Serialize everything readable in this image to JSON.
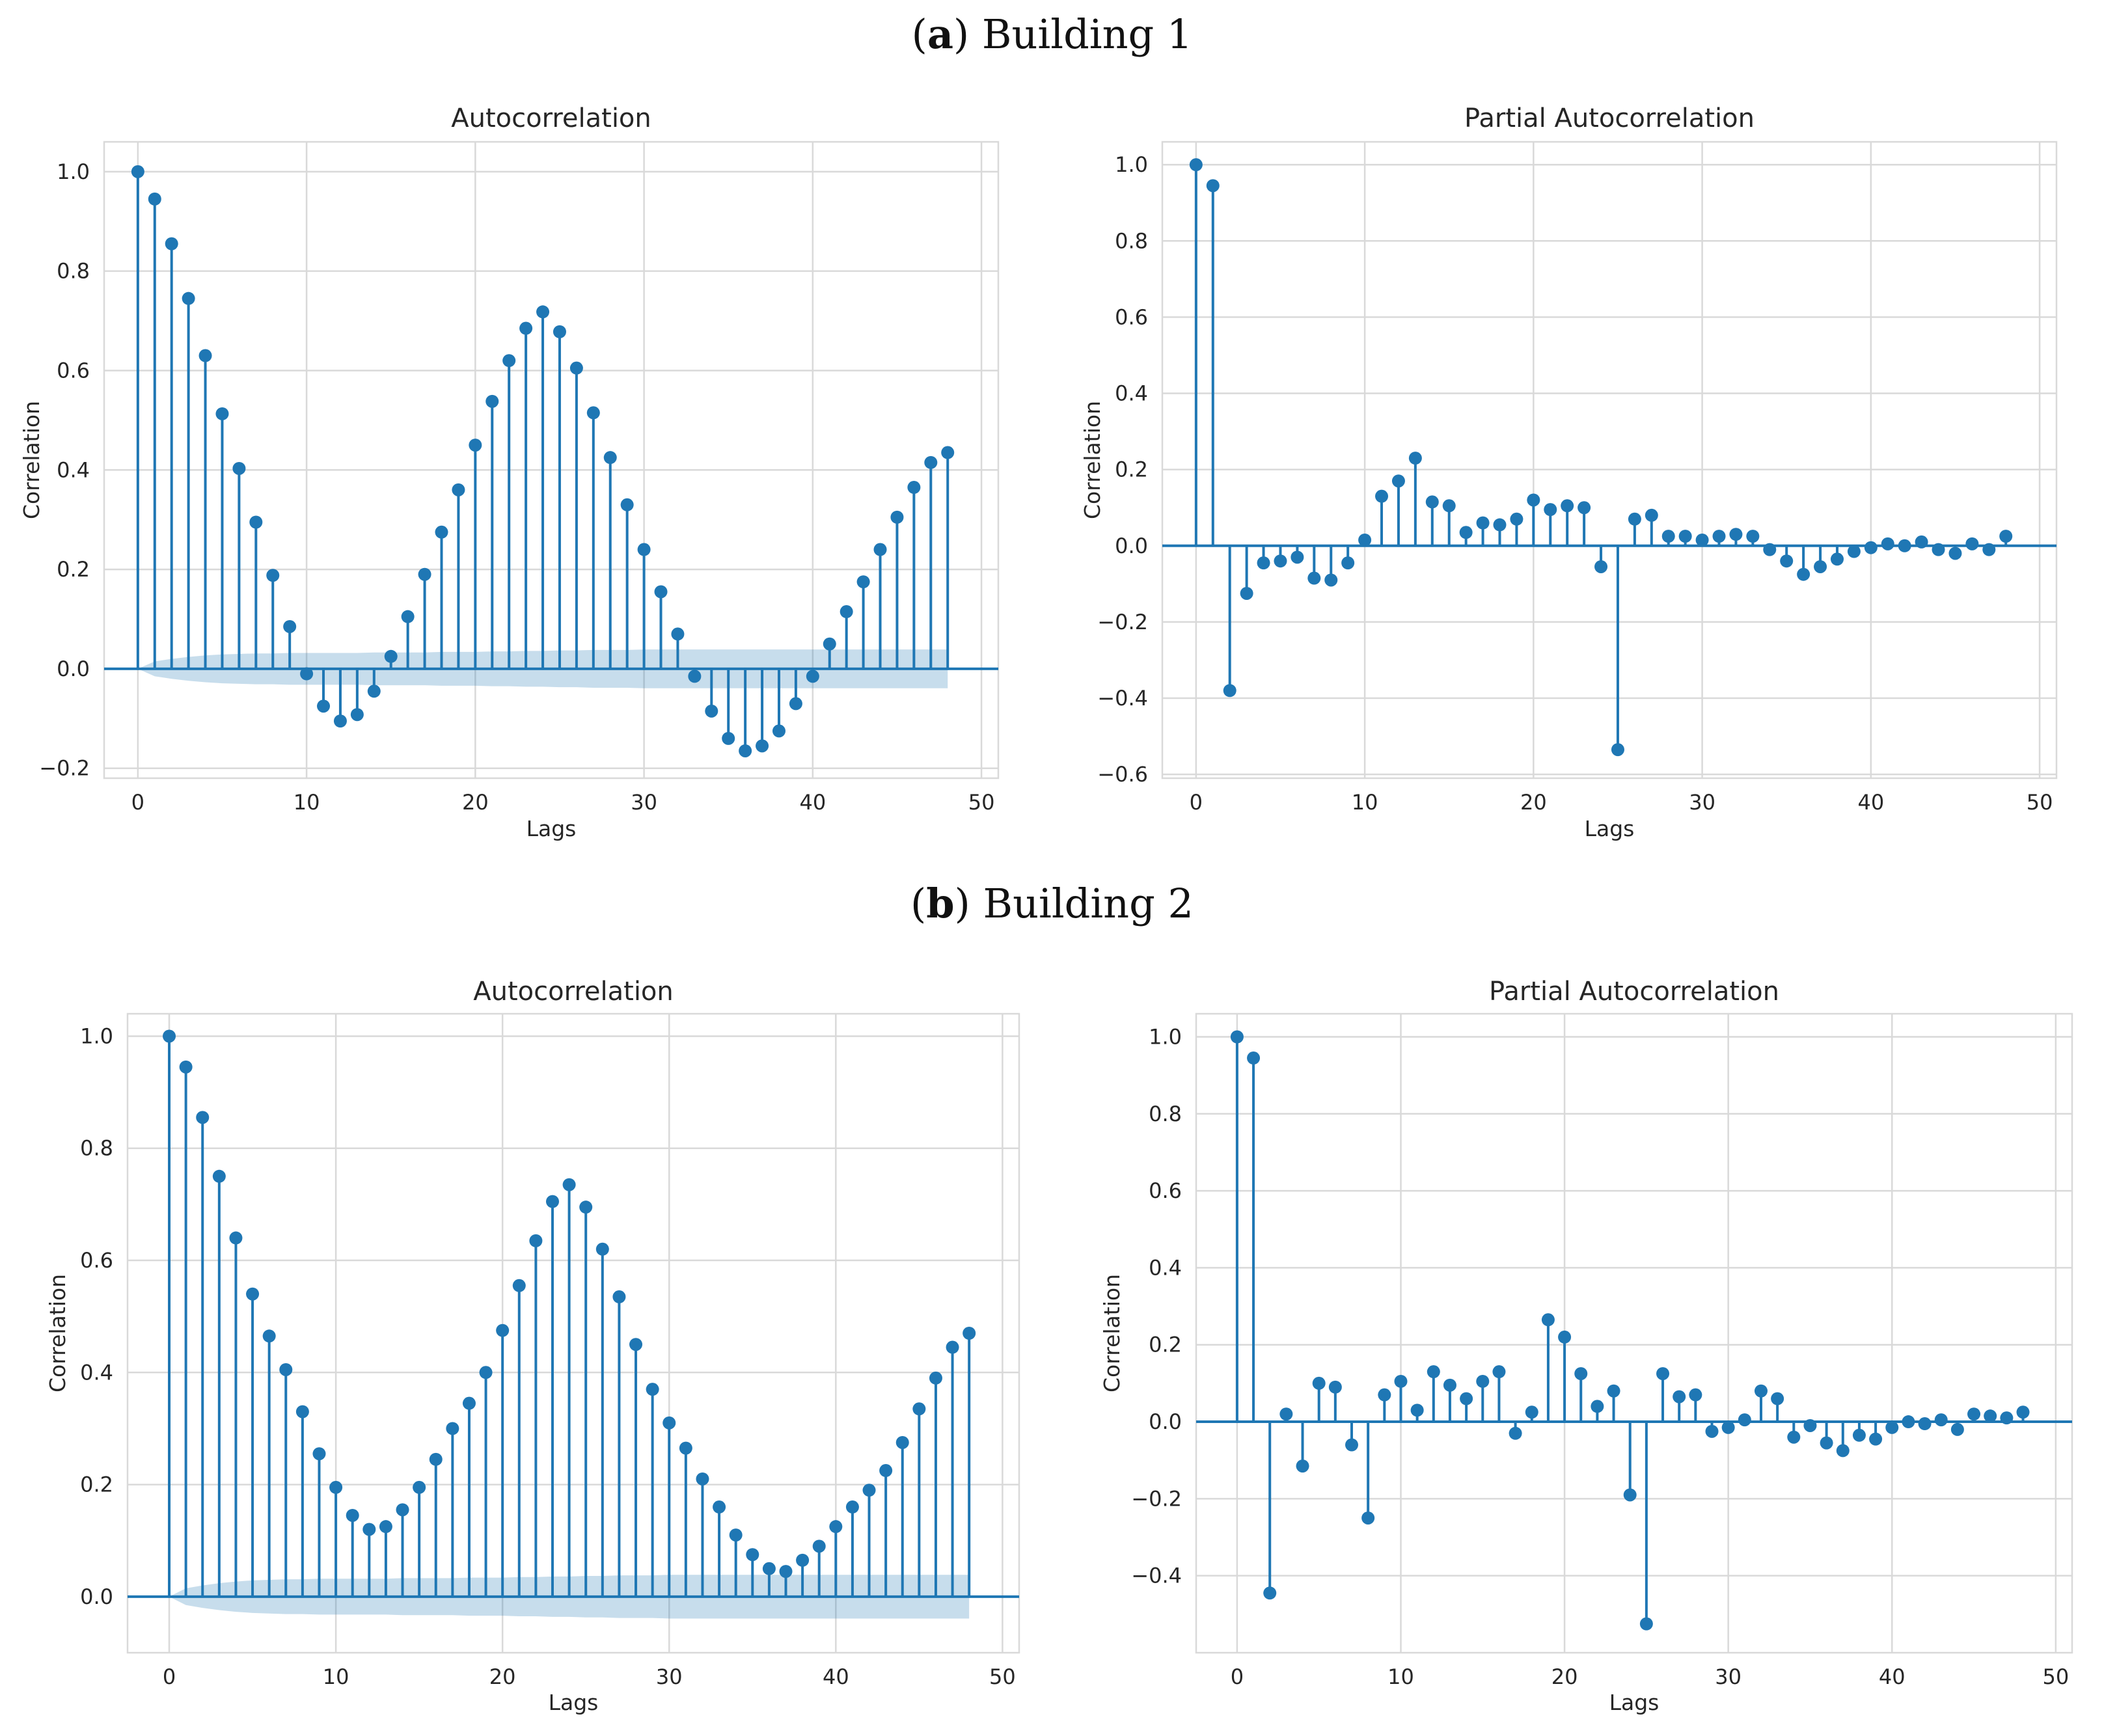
{
  "captions": [
    {
      "letter": "a",
      "text": " Building 1"
    },
    {
      "letter": "b",
      "text": " Building 2"
    }
  ],
  "colors": {
    "stem": "#1f77b4",
    "band": "#1f77b4",
    "grid": "#d9d9d9",
    "frame": "#d9d9d9"
  },
  "chart_data": [
    {
      "type": "stem",
      "title": "Autocorrelation",
      "xlabel": "Lags",
      "ylabel": "Correlation",
      "xlim": [
        -2,
        51
      ],
      "ylim": [
        -0.22,
        1.06
      ],
      "xticks": [
        0,
        10,
        20,
        30,
        40,
        50
      ],
      "yticks": [
        1.0,
        0.8,
        0.6,
        0.4,
        0.2,
        0.0,
        -0.2
      ],
      "ytick_labels": [
        "1.0",
        "0.8",
        "0.6",
        "0.4",
        "0.2",
        "0.0",
        "−0.2"
      ],
      "lags": [
        0,
        1,
        2,
        3,
        4,
        5,
        6,
        7,
        8,
        9,
        10,
        11,
        12,
        13,
        14,
        15,
        16,
        17,
        18,
        19,
        20,
        21,
        22,
        23,
        24,
        25,
        26,
        27,
        28,
        29,
        30,
        31,
        32,
        33,
        34,
        35,
        36,
        37,
        38,
        39,
        40,
        41,
        42,
        43,
        44,
        45,
        46,
        47,
        48
      ],
      "values": [
        1.0,
        0.945,
        0.855,
        0.745,
        0.63,
        0.513,
        0.403,
        0.295,
        0.188,
        0.085,
        -0.01,
        -0.075,
        -0.105,
        -0.092,
        -0.045,
        0.025,
        0.105,
        0.19,
        0.275,
        0.36,
        0.45,
        0.538,
        0.62,
        0.685,
        0.718,
        0.678,
        0.605,
        0.515,
        0.425,
        0.33,
        0.24,
        0.155,
        0.07,
        -0.015,
        -0.085,
        -0.14,
        -0.165,
        -0.155,
        -0.125,
        -0.07,
        -0.015,
        0.05,
        0.115,
        0.175,
        0.24,
        0.305,
        0.365,
        0.415,
        0.435
      ],
      "confidence_band": [
        0.0,
        0.015,
        0.02,
        0.024,
        0.027,
        0.029,
        0.03,
        0.031,
        0.031,
        0.032,
        0.032,
        0.032,
        0.032,
        0.032,
        0.033,
        0.033,
        0.033,
        0.033,
        0.034,
        0.034,
        0.034,
        0.035,
        0.035,
        0.036,
        0.036,
        0.037,
        0.037,
        0.038,
        0.038,
        0.038,
        0.039,
        0.039,
        0.039,
        0.039,
        0.039,
        0.039,
        0.039,
        0.039,
        0.039,
        0.039,
        0.039,
        0.039,
        0.039,
        0.039,
        0.039,
        0.039,
        0.039,
        0.039,
        0.039
      ]
    },
    {
      "type": "stem",
      "title": "Partial Autocorrelation",
      "xlabel": "Lags",
      "ylabel": "Correlation",
      "xlim": [
        -2,
        51
      ],
      "ylim": [
        -0.61,
        1.06
      ],
      "xticks": [
        0,
        10,
        20,
        30,
        40,
        50
      ],
      "yticks": [
        1.0,
        0.8,
        0.6,
        0.4,
        0.2,
        0.0,
        -0.2,
        -0.4,
        -0.6
      ],
      "ytick_labels": [
        "1.0",
        "0.8",
        "0.6",
        "0.4",
        "0.2",
        "0.0",
        "−0.2",
        "−0.4",
        "−0.6"
      ],
      "lags": [
        0,
        1,
        2,
        3,
        4,
        5,
        6,
        7,
        8,
        9,
        10,
        11,
        12,
        13,
        14,
        15,
        16,
        17,
        18,
        19,
        20,
        21,
        22,
        23,
        24,
        25,
        26,
        27,
        28,
        29,
        30,
        31,
        32,
        33,
        34,
        35,
        36,
        37,
        38,
        39,
        40,
        41,
        42,
        43,
        44,
        45,
        46,
        47,
        48
      ],
      "values": [
        1.0,
        0.945,
        -0.38,
        -0.125,
        -0.045,
        -0.04,
        -0.03,
        -0.085,
        -0.09,
        -0.045,
        0.015,
        0.13,
        0.17,
        0.23,
        0.115,
        0.105,
        0.035,
        0.06,
        0.055,
        0.07,
        0.12,
        0.095,
        0.105,
        0.1,
        -0.055,
        -0.535,
        0.07,
        0.08,
        0.025,
        0.025,
        0.015,
        0.025,
        0.03,
        0.025,
        -0.01,
        -0.04,
        -0.075,
        -0.055,
        -0.035,
        -0.015,
        -0.005,
        0.005,
        0.0,
        0.01,
        -0.01,
        -0.02,
        0.005,
        -0.01,
        0.025
      ]
    },
    {
      "type": "stem",
      "title": "Autocorrelation",
      "xlabel": "Lags",
      "ylabel": "Correlation",
      "xlim": [
        -2.5,
        51
      ],
      "ylim": [
        -0.1,
        1.04
      ],
      "xticks": [
        0,
        10,
        20,
        30,
        40,
        50
      ],
      "yticks": [
        1.0,
        0.8,
        0.6,
        0.4,
        0.2,
        0.0
      ],
      "ytick_labels": [
        "1.0",
        "0.8",
        "0.6",
        "0.4",
        "0.2",
        "0.0"
      ],
      "lags": [
        0,
        1,
        2,
        3,
        4,
        5,
        6,
        7,
        8,
        9,
        10,
        11,
        12,
        13,
        14,
        15,
        16,
        17,
        18,
        19,
        20,
        21,
        22,
        23,
        24,
        25,
        26,
        27,
        28,
        29,
        30,
        31,
        32,
        33,
        34,
        35,
        36,
        37,
        38,
        39,
        40,
        41,
        42,
        43,
        44,
        45,
        46,
        47,
        48
      ],
      "values": [
        1.0,
        0.945,
        0.855,
        0.75,
        0.64,
        0.54,
        0.465,
        0.405,
        0.33,
        0.255,
        0.195,
        0.145,
        0.12,
        0.125,
        0.155,
        0.195,
        0.245,
        0.3,
        0.345,
        0.4,
        0.475,
        0.555,
        0.635,
        0.705,
        0.735,
        0.695,
        0.62,
        0.535,
        0.45,
        0.37,
        0.31,
        0.265,
        0.21,
        0.16,
        0.11,
        0.075,
        0.05,
        0.045,
        0.065,
        0.09,
        0.125,
        0.16,
        0.19,
        0.225,
        0.275,
        0.335,
        0.39,
        0.445,
        0.47
      ],
      "confidence_band": [
        0.0,
        0.015,
        0.02,
        0.024,
        0.027,
        0.029,
        0.03,
        0.031,
        0.031,
        0.032,
        0.032,
        0.032,
        0.032,
        0.032,
        0.033,
        0.033,
        0.033,
        0.033,
        0.034,
        0.034,
        0.034,
        0.035,
        0.035,
        0.036,
        0.036,
        0.037,
        0.037,
        0.038,
        0.038,
        0.038,
        0.039,
        0.039,
        0.039,
        0.039,
        0.039,
        0.039,
        0.039,
        0.039,
        0.039,
        0.039,
        0.039,
        0.039,
        0.039,
        0.039,
        0.039,
        0.039,
        0.039,
        0.039,
        0.039
      ]
    },
    {
      "type": "stem",
      "title": "Partial Autocorrelation",
      "xlabel": "Lags",
      "ylabel": "Correlation",
      "xlim": [
        -2.5,
        51
      ],
      "ylim": [
        -0.6,
        1.06
      ],
      "xticks": [
        0,
        10,
        20,
        30,
        40,
        50
      ],
      "yticks": [
        1.0,
        0.8,
        0.6,
        0.4,
        0.2,
        0.0,
        -0.2,
        -0.4
      ],
      "ytick_labels": [
        "1.0",
        "0.8",
        "0.6",
        "0.4",
        "0.2",
        "0.0",
        "−0.2",
        "−0.4"
      ],
      "lags": [
        0,
        1,
        2,
        3,
        4,
        5,
        6,
        7,
        8,
        9,
        10,
        11,
        12,
        13,
        14,
        15,
        16,
        17,
        18,
        19,
        20,
        21,
        22,
        23,
        24,
        25,
        26,
        27,
        28,
        29,
        30,
        31,
        32,
        33,
        34,
        35,
        36,
        37,
        38,
        39,
        40,
        41,
        42,
        43,
        44,
        45,
        46,
        47,
        48
      ],
      "values": [
        1.0,
        0.945,
        -0.445,
        0.02,
        -0.115,
        0.1,
        0.09,
        -0.06,
        -0.25,
        0.07,
        0.105,
        0.03,
        0.13,
        0.095,
        0.06,
        0.105,
        0.13,
        -0.03,
        0.025,
        0.265,
        0.22,
        0.125,
        0.04,
        0.08,
        -0.19,
        -0.525,
        0.125,
        0.065,
        0.07,
        -0.025,
        -0.015,
        0.005,
        0.08,
        0.06,
        -0.04,
        -0.01,
        -0.055,
        -0.075,
        -0.035,
        -0.045,
        -0.015,
        0.0,
        -0.005,
        0.005,
        -0.02,
        0.02,
        0.015,
        0.01,
        0.025
      ]
    }
  ]
}
